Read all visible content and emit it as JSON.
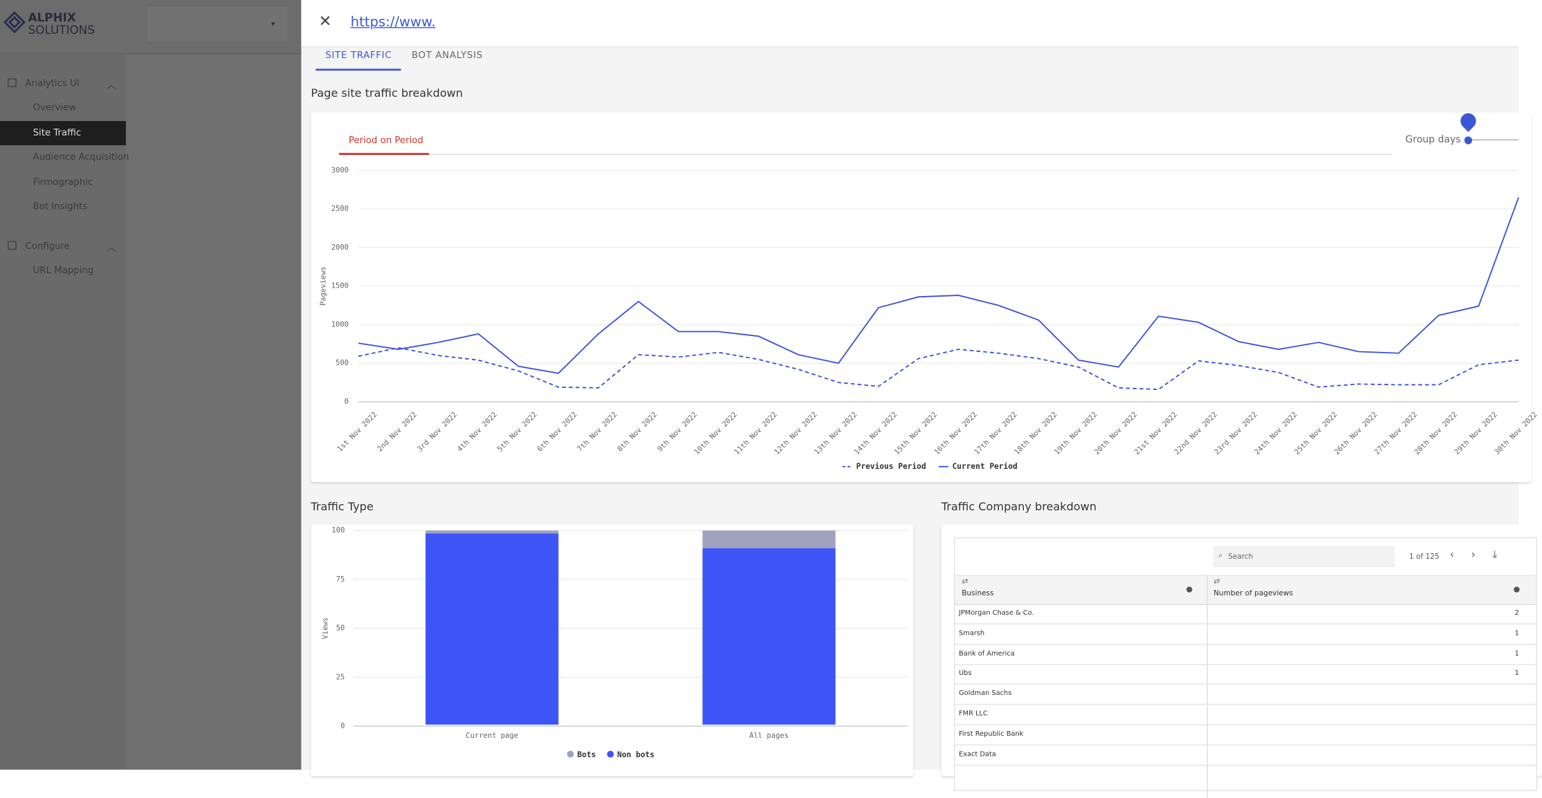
{
  "sidebar": {
    "logo_line1": "ALPHIX",
    "logo_line2": "SOLUTIONS",
    "groups": [
      {
        "label": "Analytics UI",
        "items": [
          "Overview",
          "Site Traffic",
          "Audience Acquisition",
          "Firmographic",
          "Bot Insights"
        ]
      },
      {
        "label": "Configure",
        "items": [
          "URL Mapping"
        ]
      }
    ]
  },
  "header": {
    "url": "https://www."
  },
  "tabs": [
    "SITE TRAFFIC",
    "BOT ANALYSIS"
  ],
  "section_title": "Page site traffic breakdown",
  "subtab": "Period on Period",
  "group_days_label": "Group days",
  "chart_data": [
    {
      "type": "line",
      "ylabel": "Pageviews",
      "categories": [
        "1st Nov 2022",
        "2nd Nov 2022",
        "3rd Nov 2022",
        "4th Nov 2022",
        "5th Nov 2022",
        "6th Nov 2022",
        "7th Nov 2022",
        "8th Nov 2022",
        "9th Nov 2022",
        "10th Nov 2022",
        "11th Nov 2022",
        "12th Nov 2022",
        "13th Nov 2022",
        "14th Nov 2022",
        "15th Nov 2022",
        "16th Nov 2022",
        "17th Nov 2022",
        "18th Nov 2022",
        "19th Nov 2022",
        "20th Nov 2022",
        "21st Nov 2022",
        "22nd Nov 2022",
        "23rd Nov 2022",
        "24th Nov 2022",
        "25th Nov 2022",
        "26th Nov 2022",
        "27th Nov 2022",
        "28th Nov 2022",
        "29th Nov 2022",
        "30th Nov 2022"
      ],
      "series": [
        {
          "name": "Previous Period",
          "color": "#3d4fd8",
          "dashed": true,
          "values": [
            590,
            700,
            600,
            540,
            400,
            190,
            180,
            610,
            580,
            640,
            550,
            420,
            250,
            200,
            560,
            680,
            630,
            560,
            450,
            180,
            160,
            530,
            470,
            380,
            190,
            230,
            220,
            220,
            480,
            540
          ]
        },
        {
          "name": "Current Period",
          "color": "#3d4fd8",
          "dashed": false,
          "values": [
            760,
            680,
            770,
            880,
            460,
            370,
            880,
            1300,
            910,
            910,
            850,
            610,
            500,
            1220,
            1360,
            1380,
            1250,
            1060,
            540,
            450,
            1110,
            1030,
            780,
            680,
            770,
            650,
            630,
            1120,
            1240,
            2650
          ]
        }
      ],
      "ylim": [
        0,
        3000
      ],
      "yticks": [
        0,
        500,
        1000,
        1500,
        2000,
        2500,
        3000
      ],
      "grid": true
    },
    {
      "type": "bar",
      "stacked": true,
      "ylabel": "Views",
      "categories": [
        "Current page",
        "All pages"
      ],
      "series": [
        {
          "name": "Bots",
          "color": "#a0a3c0",
          "values": [
            1.5,
            9
          ]
        },
        {
          "name": "Non bots",
          "color": "#3d55f7",
          "values": [
            98.5,
            91
          ]
        }
      ],
      "ylim": [
        0,
        100
      ],
      "yticks": [
        0,
        25,
        50,
        75,
        100
      ],
      "grid": true
    }
  ],
  "traffic_type_title": "Traffic Type",
  "company": {
    "title": "Traffic Company breakdown",
    "search_placeholder": "Search",
    "pagination": "1 of 125",
    "columns": [
      "Business",
      "Number of pageviews"
    ],
    "rows": [
      [
        "JPMorgan Chase & Co.",
        "2"
      ],
      [
        "Smarsh",
        "1"
      ],
      [
        "Bank of America",
        "1"
      ],
      [
        "Ubs",
        "1"
      ],
      [
        "Goldman Sachs",
        ""
      ],
      [
        "FMR LLC",
        ""
      ],
      [
        "First Republic Bank",
        ""
      ],
      [
        "Exact Data",
        ""
      ]
    ]
  }
}
